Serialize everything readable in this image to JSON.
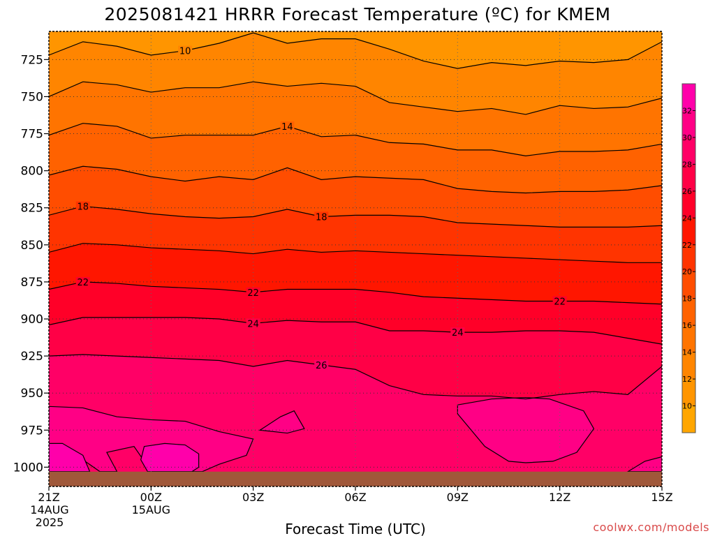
{
  "chart_data": {
    "type": "heatmap",
    "title": "2025081421 HRRR Forecast Temperature (ºC) for KMEM",
    "xlabel": "Forecast Time (UTC)",
    "ylabel": "",
    "x_ticks": [
      {
        "t": 0,
        "lines": [
          "21Z",
          "14AUG",
          "2025"
        ]
      },
      {
        "t": 3,
        "lines": [
          "00Z",
          "15AUG"
        ]
      },
      {
        "t": 6,
        "lines": [
          "03Z"
        ]
      },
      {
        "t": 9,
        "lines": [
          "06Z"
        ]
      },
      {
        "t": 12,
        "lines": [
          "09Z"
        ]
      },
      {
        "t": 15,
        "lines": [
          "12Z"
        ]
      },
      {
        "t": 18,
        "lines": [
          "15Z"
        ]
      }
    ],
    "y_ticks": [
      725,
      750,
      775,
      800,
      825,
      850,
      875,
      900,
      925,
      950,
      975,
      1000
    ],
    "xlim": [
      0,
      18
    ],
    "ylim": [
      1013,
      706
    ],
    "y_axis_inverted": true,
    "grid": true,
    "ground_level_hpa": 1003,
    "colorbar": {
      "ticks": [
        10,
        12,
        14,
        16,
        18,
        20,
        22,
        24,
        26,
        28,
        30,
        32
      ],
      "range": [
        8,
        34
      ],
      "colors": [
        "#ffa600",
        "#ff9500",
        "#ff8500",
        "#ff7400",
        "#ff6200",
        "#ff4d00",
        "#ff3400",
        "#ff1600",
        "#ff0028",
        "#ff0046",
        "#ff0066",
        "#ff0085",
        "#ff00aa"
      ]
    },
    "contours": [
      {
        "level": 10,
        "points": [
          [
            0,
            722
          ],
          [
            1,
            713
          ],
          [
            2,
            716
          ],
          [
            3,
            722
          ],
          [
            4,
            719
          ],
          [
            5,
            714
          ],
          [
            6,
            707
          ],
          [
            7,
            714
          ],
          [
            8,
            711
          ],
          [
            9,
            711
          ],
          [
            10,
            718
          ],
          [
            11,
            726
          ],
          [
            12,
            731
          ],
          [
            13,
            727
          ],
          [
            14,
            729
          ],
          [
            15,
            726
          ],
          [
            16,
            727
          ],
          [
            17,
            725
          ],
          [
            18,
            713
          ]
        ]
      },
      {
        "level": 12,
        "points": [
          [
            0,
            750
          ],
          [
            1,
            740
          ],
          [
            2,
            742
          ],
          [
            3,
            747
          ],
          [
            4,
            744
          ],
          [
            5,
            744
          ],
          [
            6,
            740
          ],
          [
            7,
            743
          ],
          [
            8,
            741
          ],
          [
            9,
            743
          ],
          [
            10,
            754
          ],
          [
            11,
            757
          ],
          [
            12,
            760
          ],
          [
            13,
            758
          ],
          [
            14,
            762
          ],
          [
            15,
            756
          ],
          [
            16,
            758
          ],
          [
            17,
            757
          ],
          [
            18,
            751
          ]
        ]
      },
      {
        "level": 14,
        "points": [
          [
            0,
            776
          ],
          [
            1,
            768
          ],
          [
            2,
            770
          ],
          [
            3,
            778
          ],
          [
            4,
            776
          ],
          [
            5,
            776
          ],
          [
            6,
            776
          ],
          [
            7,
            770
          ],
          [
            8,
            777
          ],
          [
            9,
            776
          ],
          [
            10,
            781
          ],
          [
            11,
            782
          ],
          [
            12,
            786
          ],
          [
            13,
            786
          ],
          [
            14,
            790
          ],
          [
            15,
            787
          ],
          [
            16,
            787
          ],
          [
            17,
            786
          ],
          [
            18,
            782
          ]
        ]
      },
      {
        "level": 16,
        "points": [
          [
            0,
            803
          ],
          [
            1,
            797
          ],
          [
            2,
            799
          ],
          [
            3,
            804
          ],
          [
            4,
            807
          ],
          [
            5,
            804
          ],
          [
            6,
            806
          ],
          [
            7,
            798
          ],
          [
            8,
            806
          ],
          [
            9,
            804
          ],
          [
            10,
            805
          ],
          [
            11,
            806
          ],
          [
            12,
            812
          ],
          [
            13,
            814
          ],
          [
            14,
            815
          ],
          [
            15,
            814
          ],
          [
            16,
            814
          ],
          [
            17,
            813
          ],
          [
            18,
            810
          ]
        ]
      },
      {
        "level": 18,
        "points": [
          [
            0,
            830
          ],
          [
            1,
            824
          ],
          [
            2,
            826
          ],
          [
            3,
            829
          ],
          [
            4,
            831
          ],
          [
            5,
            832
          ],
          [
            6,
            831
          ],
          [
            7,
            826
          ],
          [
            8,
            831
          ],
          [
            9,
            830
          ],
          [
            10,
            830
          ],
          [
            11,
            831
          ],
          [
            12,
            835
          ],
          [
            13,
            836
          ],
          [
            14,
            837
          ],
          [
            15,
            838
          ],
          [
            16,
            838
          ],
          [
            17,
            838
          ],
          [
            18,
            837
          ]
        ]
      },
      {
        "level": 20,
        "points": [
          [
            0,
            855
          ],
          [
            1,
            849
          ],
          [
            2,
            850
          ],
          [
            3,
            852
          ],
          [
            4,
            853
          ],
          [
            5,
            854
          ],
          [
            6,
            856
          ],
          [
            7,
            853
          ],
          [
            8,
            855
          ],
          [
            9,
            854
          ],
          [
            10,
            855
          ],
          [
            11,
            856
          ],
          [
            12,
            857
          ],
          [
            13,
            858
          ],
          [
            14,
            859
          ],
          [
            15,
            860
          ],
          [
            16,
            861
          ],
          [
            17,
            862
          ],
          [
            18,
            862
          ]
        ]
      },
      {
        "level": 22,
        "points": [
          [
            0,
            880
          ],
          [
            1,
            875
          ],
          [
            2,
            876
          ],
          [
            3,
            878
          ],
          [
            4,
            879
          ],
          [
            5,
            880
          ],
          [
            6,
            882
          ],
          [
            7,
            880
          ],
          [
            8,
            880
          ],
          [
            9,
            880
          ],
          [
            10,
            882
          ],
          [
            11,
            885
          ],
          [
            12,
            886
          ],
          [
            13,
            887
          ],
          [
            14,
            888
          ],
          [
            15,
            888
          ],
          [
            16,
            888
          ],
          [
            17,
            889
          ],
          [
            18,
            890
          ]
        ]
      },
      {
        "level": 24,
        "points": [
          [
            0,
            904
          ],
          [
            1,
            899
          ],
          [
            2,
            899
          ],
          [
            3,
            899
          ],
          [
            4,
            899
          ],
          [
            5,
            900
          ],
          [
            6,
            903
          ],
          [
            7,
            901
          ],
          [
            8,
            902
          ],
          [
            9,
            902
          ],
          [
            10,
            908
          ],
          [
            11,
            908
          ],
          [
            12,
            909
          ],
          [
            13,
            909
          ],
          [
            14,
            908
          ],
          [
            15,
            908
          ],
          [
            16,
            909
          ],
          [
            17,
            913
          ],
          [
            18,
            917
          ]
        ]
      },
      {
        "level": 26,
        "points": [
          [
            0,
            925
          ],
          [
            1,
            924
          ],
          [
            2,
            925
          ],
          [
            3,
            926
          ],
          [
            4,
            927
          ],
          [
            5,
            928
          ],
          [
            6,
            932
          ],
          [
            7,
            928
          ],
          [
            8,
            931
          ],
          [
            9,
            934
          ],
          [
            10,
            945
          ],
          [
            11,
            951
          ],
          [
            12,
            952
          ],
          [
            13,
            952
          ],
          [
            14,
            954
          ],
          [
            15,
            951
          ],
          [
            16,
            949
          ],
          [
            17,
            951
          ],
          [
            18,
            932
          ]
        ]
      }
    ],
    "contour_labels": [
      {
        "level": 10,
        "t": 4.0
      },
      {
        "level": 14,
        "t": 7.0
      },
      {
        "level": 18,
        "t": 1.0
      },
      {
        "level": 18,
        "t": 8.0
      },
      {
        "level": 22,
        "t": 1.0
      },
      {
        "level": 22,
        "t": 6.0
      },
      {
        "level": 22,
        "t": 15.0
      },
      {
        "level": 24,
        "t": 6.0
      },
      {
        "level": 24,
        "t": 12.0
      },
      {
        "level": 26,
        "t": 8.0
      }
    ],
    "warm_regions": [
      {
        "level": 28,
        "points": [
          [
            0,
            975
          ],
          [
            0,
            959
          ],
          [
            1,
            960
          ],
          [
            2,
            966
          ],
          [
            3,
            968
          ],
          [
            4,
            969
          ],
          [
            5,
            976
          ],
          [
            6,
            981
          ],
          [
            5.8,
            992
          ],
          [
            5,
            998
          ],
          [
            4.5,
            1003
          ],
          [
            3.1,
            1003
          ],
          [
            2.8,
            996
          ],
          [
            2.5,
            986
          ],
          [
            1.7,
            990
          ],
          [
            2,
            1003
          ],
          [
            1.5,
            1003
          ],
          [
            1,
            995
          ],
          [
            0,
            990
          ]
        ]
      },
      {
        "level": 28,
        "points": [
          [
            6.2,
            975
          ],
          [
            6.8,
            966
          ],
          [
            7.2,
            962
          ],
          [
            7.5,
            974
          ],
          [
            7,
            977
          ]
        ]
      },
      {
        "level": 28,
        "points": [
          [
            12,
            958
          ],
          [
            13,
            954
          ],
          [
            14,
            953
          ],
          [
            14.7,
            954
          ],
          [
            15.7,
            962
          ],
          [
            16,
            974
          ],
          [
            15.5,
            990
          ],
          [
            14.8,
            996
          ],
          [
            14,
            997
          ],
          [
            13.5,
            996
          ],
          [
            12.8,
            986
          ],
          [
            12.4,
            975
          ],
          [
            12,
            964
          ]
        ]
      },
      {
        "level": 30,
        "points": [
          [
            0,
            984
          ],
          [
            0.4,
            984
          ],
          [
            1,
            992
          ],
          [
            1.2,
            1003
          ],
          [
            0,
            1003
          ]
        ]
      },
      {
        "level": 30,
        "points": [
          [
            2.8,
            986
          ],
          [
            3.4,
            984
          ],
          [
            4,
            985
          ],
          [
            4.4,
            991
          ],
          [
            4.4,
            1000
          ],
          [
            4.2,
            1003
          ],
          [
            2.9,
            1003
          ],
          [
            2.7,
            995
          ]
        ]
      },
      {
        "level": 28,
        "points": [
          [
            18,
            1003
          ],
          [
            17,
            1003
          ],
          [
            17.5,
            996
          ],
          [
            18,
            993
          ]
        ]
      }
    ]
  },
  "credit": "coolwx.com/models"
}
